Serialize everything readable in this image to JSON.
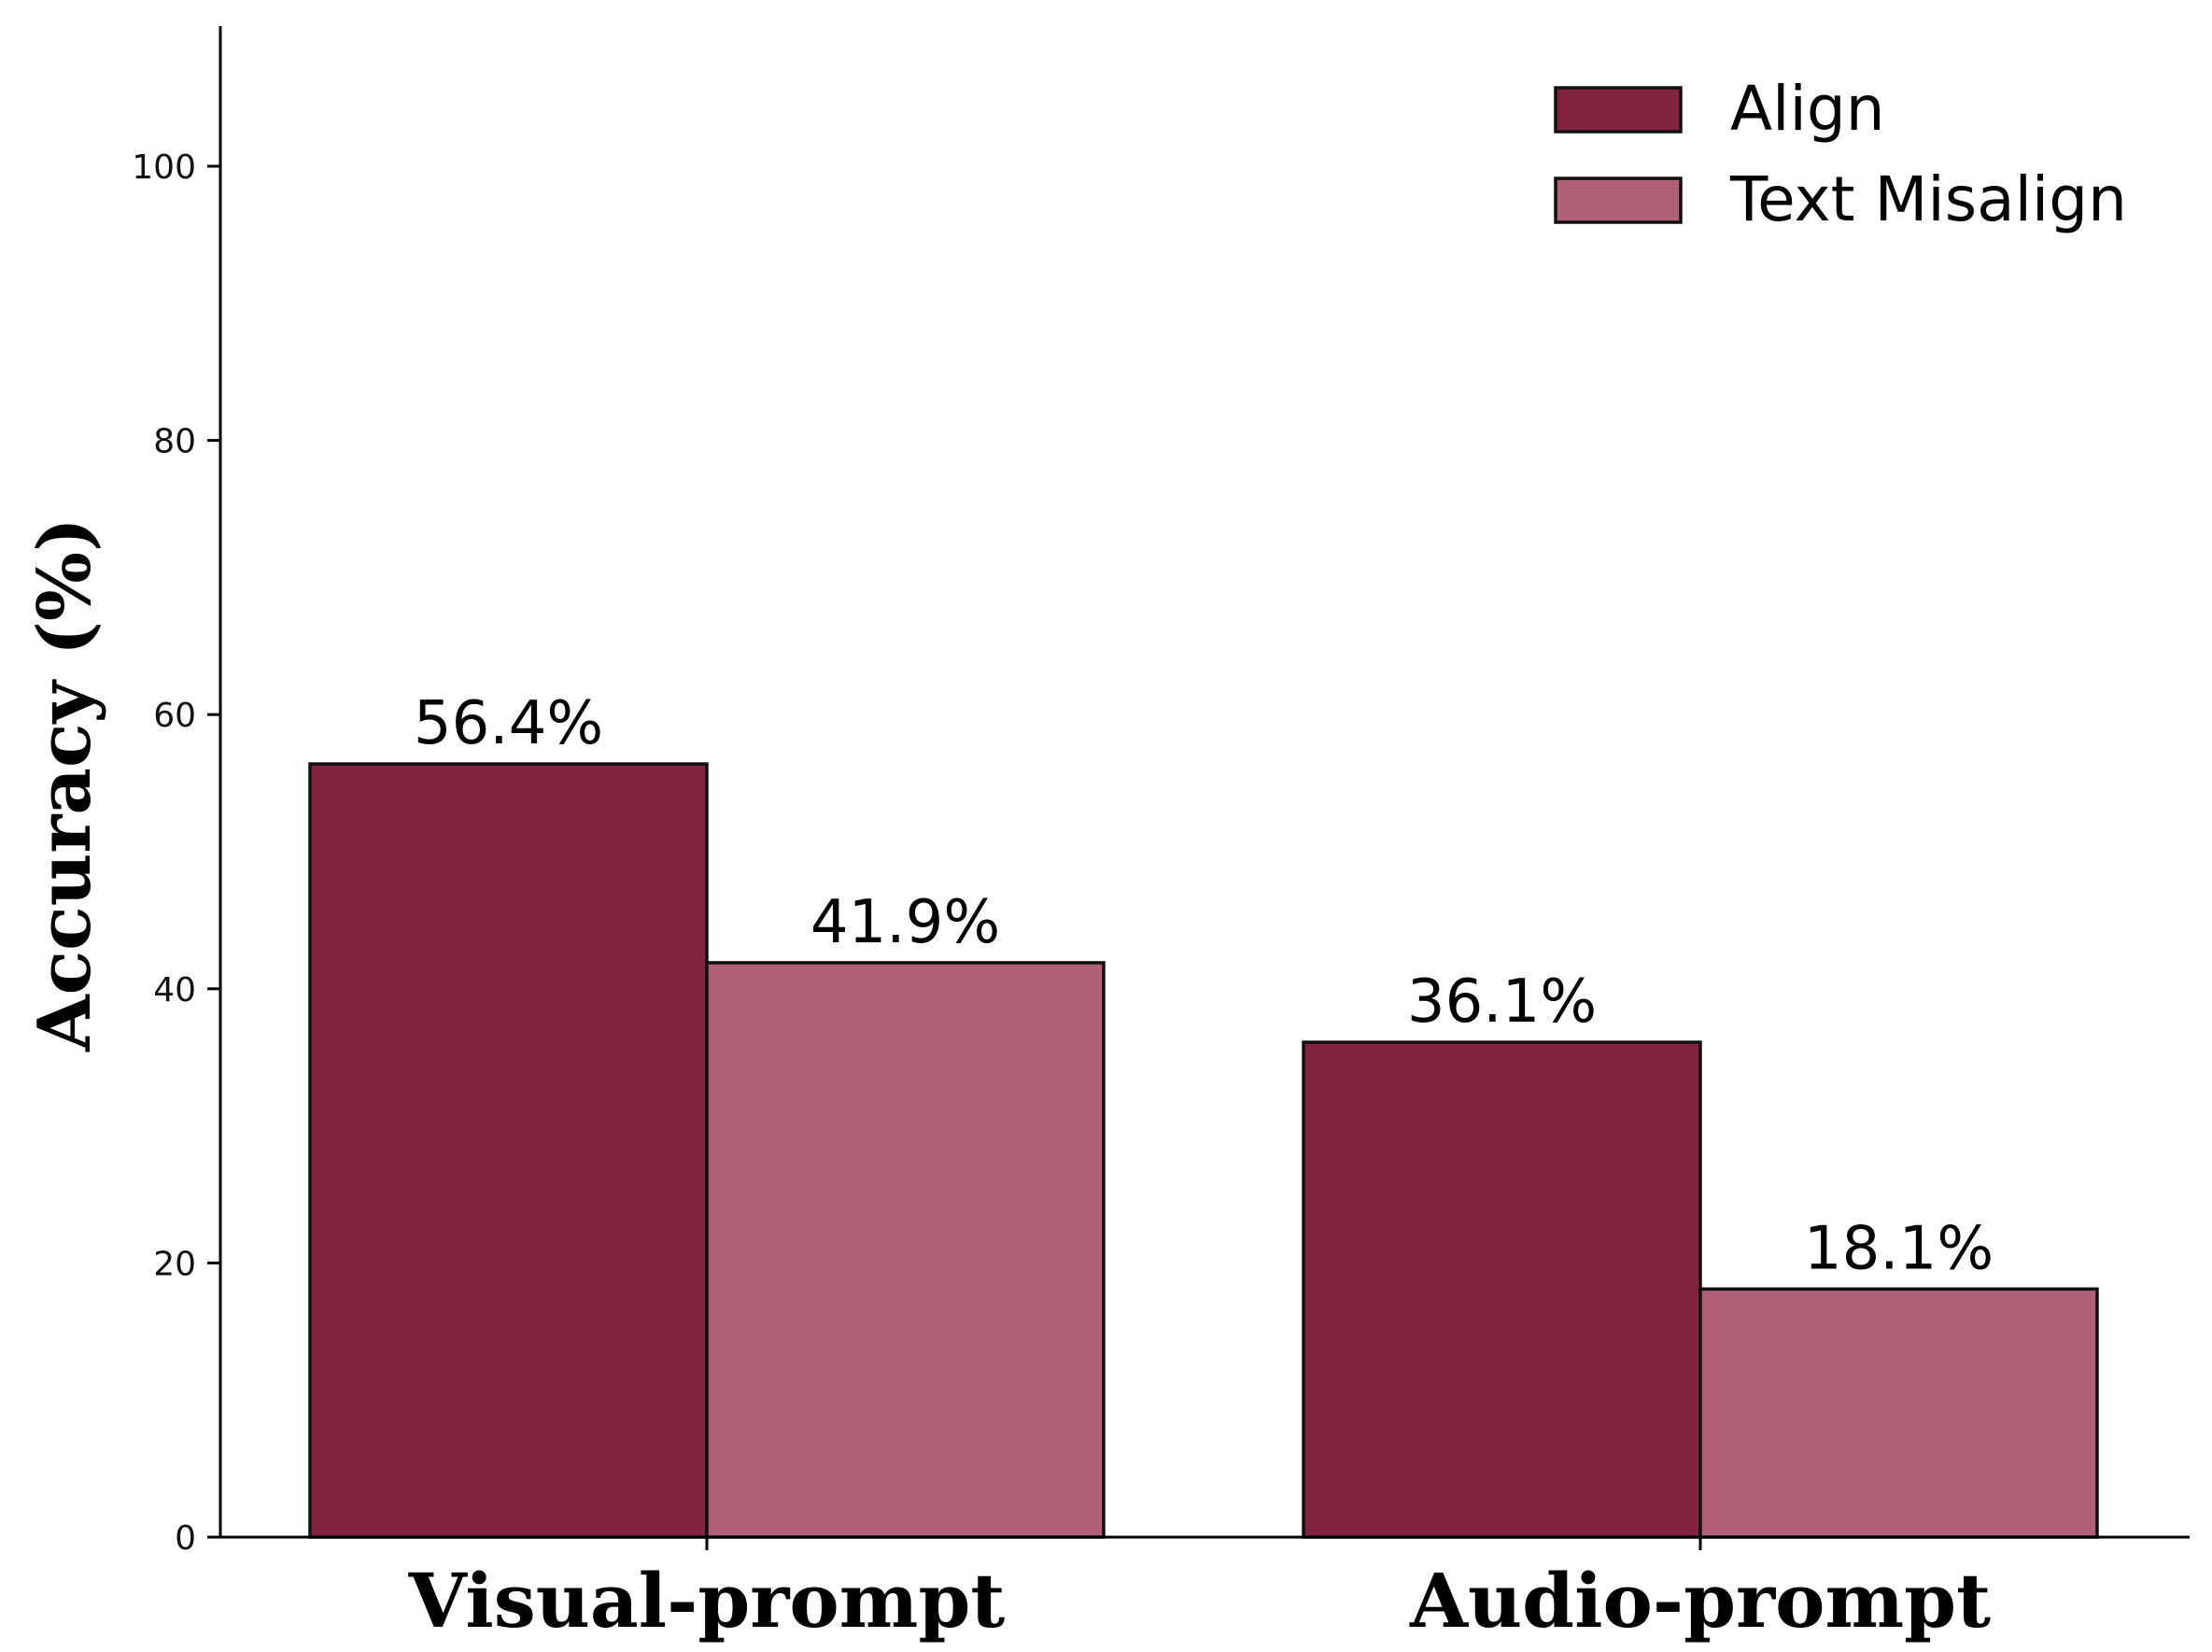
{
  "chart_data": {
    "type": "bar",
    "title": "",
    "xlabel": "",
    "ylabel": "Accuracy (%)",
    "ylim": [
      0,
      110
    ],
    "yticks": [
      0,
      20,
      40,
      60,
      80,
      100
    ],
    "categories": [
      "Visual-prompt",
      "Audio-prompt"
    ],
    "series": [
      {
        "name": "Align",
        "values": [
          56.4,
          36.1
        ],
        "labels": [
          "56.4%",
          "36.1%"
        ],
        "color": "#82243f"
      },
      {
        "name": "Text Misalign",
        "values": [
          41.9,
          18.1
        ],
        "labels": [
          "41.9%",
          "18.1%"
        ],
        "color": "#b06076"
      }
    ],
    "legend_position": "top-right",
    "grid": false
  }
}
